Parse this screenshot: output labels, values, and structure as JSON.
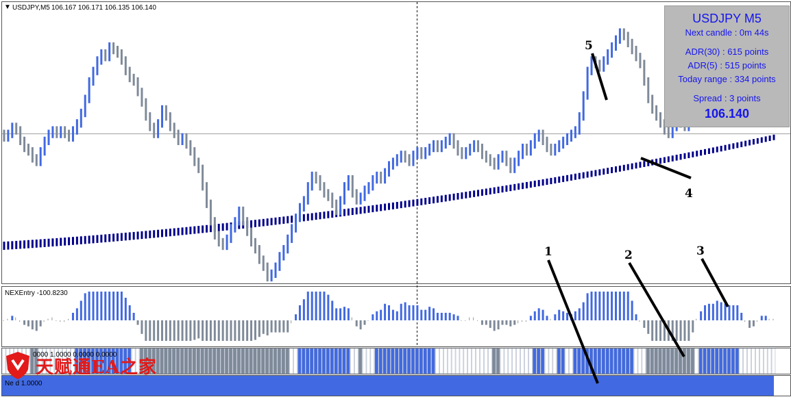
{
  "header": {
    "arrow": "▼",
    "symbol": "USDJPY,M5",
    "ohlc": "106.167 106.171 106.135 106.140"
  },
  "info_panel": {
    "title": "USDJPY M5",
    "next_candle": "Next candle : 0m 44s",
    "adr30": "ADR(30) : 615 points",
    "adr5": "ADR(5) : 515 points",
    "today_range": "Today range : 334 points",
    "spread": "Spread : 3 points",
    "price": "106.140"
  },
  "subwindow1": {
    "label": "NEXEntry -100.8230"
  },
  "subwindow2": {
    "label": "0000 1.0000 0.0000 0.0000"
  },
  "subwindow3": {
    "label": "Ne  d  1.0000"
  },
  "watermark": {
    "text": "天赋通EA之家",
    "logo": "shield-logo"
  },
  "annotations": [
    {
      "text": "1"
    },
    {
      "text": "2"
    },
    {
      "text": "3"
    },
    {
      "text": "4"
    },
    {
      "text": "5"
    }
  ],
  "colors": {
    "bull": "#4169e1",
    "bear": "#7f8a99",
    "ma": "#00008b",
    "panel": "#b9b9b9",
    "panel_text": "#1515ee",
    "watermark": "#e21a1a"
  },
  "chart_data": [
    {
      "type": "bar",
      "symbol": "USDJPY",
      "timeframe": "M5",
      "closes": [
        106.14,
        106.15,
        106.17,
        106.16,
        106.13,
        106.11,
        106.1,
        106.08,
        106.07,
        106.1,
        106.13,
        106.15,
        106.16,
        106.15,
        106.16,
        106.15,
        106.14,
        106.16,
        106.18,
        106.21,
        106.25,
        106.3,
        106.33,
        106.36,
        106.38,
        106.37,
        106.4,
        106.39,
        106.38,
        106.36,
        106.33,
        106.31,
        106.3,
        106.27,
        106.24,
        106.2,
        106.17,
        106.15,
        106.18,
        106.22,
        106.2,
        106.17,
        106.15,
        106.13,
        106.14,
        106.12,
        106.1,
        106.07,
        106.05,
        106.0,
        105.95,
        105.9,
        105.86,
        105.84,
        105.83,
        105.85,
        105.88,
        105.9,
        105.93,
        105.9,
        105.87,
        105.84,
        105.82,
        105.79,
        105.77,
        105.74,
        105.75,
        105.77,
        105.8,
        105.82,
        105.85,
        105.88,
        105.91,
        105.94,
        105.96,
        106.0,
        106.03,
        106.02,
        106.0,
        105.98,
        105.97,
        105.95,
        105.93,
        105.96,
        106.0,
        106.02,
        105.98,
        105.96,
        105.97,
        105.99,
        106.0,
        106.02,
        106.03,
        106.02,
        106.04,
        106.06,
        106.07,
        106.08,
        106.09,
        106.08,
        106.07,
        106.09,
        106.1,
        106.09,
        106.1,
        106.11,
        106.12,
        106.11,
        106.12,
        106.13,
        106.14,
        106.12,
        106.1,
        106.09,
        106.1,
        106.11,
        106.12,
        106.11,
        106.09,
        106.08,
        106.07,
        106.06,
        106.08,
        106.09,
        106.07,
        106.05,
        106.07,
        106.09,
        106.11,
        106.1,
        106.12,
        106.14,
        106.15,
        106.13,
        106.11,
        106.1,
        106.11,
        106.12,
        106.13,
        106.14,
        106.15,
        106.16,
        106.2,
        106.26,
        106.33,
        106.36,
        106.35,
        106.34,
        106.36,
        106.38,
        106.4,
        106.42,
        106.44,
        106.43,
        106.41,
        106.39,
        106.37,
        106.35,
        106.3,
        106.25,
        106.22,
        106.2,
        106.18,
        106.16,
        106.15,
        106.17,
        106.19,
        106.18,
        106.17,
        106.19,
        106.22,
        106.26,
        106.28,
        106.3,
        106.29,
        106.27,
        106.28,
        106.29,
        106.3,
        106.28,
        106.27,
        106.29,
        106.27,
        106.25,
        106.23,
        106.26,
        106.28,
        106.3,
        106.31,
        106.3,
        106.31
      ],
      "trend_ma": {
        "description": "Smoothed moving average band (annotation 4)",
        "start": 105.83,
        "end": 106.14
      },
      "annotations": [
        {
          "label": "4",
          "target": "trend moving average"
        },
        {
          "label": "5",
          "target": "entry bar"
        }
      ]
    },
    {
      "type": "bar",
      "name": "NEXEntry",
      "current_value": -100.823,
      "annotations": [
        {
          "label": "3",
          "target": "NEXEntry histogram"
        }
      ]
    },
    {
      "type": "bar",
      "name": "signal strip",
      "annotations": [
        {
          "label": "1",
          "target": "lower strip"
        },
        {
          "label": "2",
          "target": "signal strip"
        }
      ]
    }
  ]
}
